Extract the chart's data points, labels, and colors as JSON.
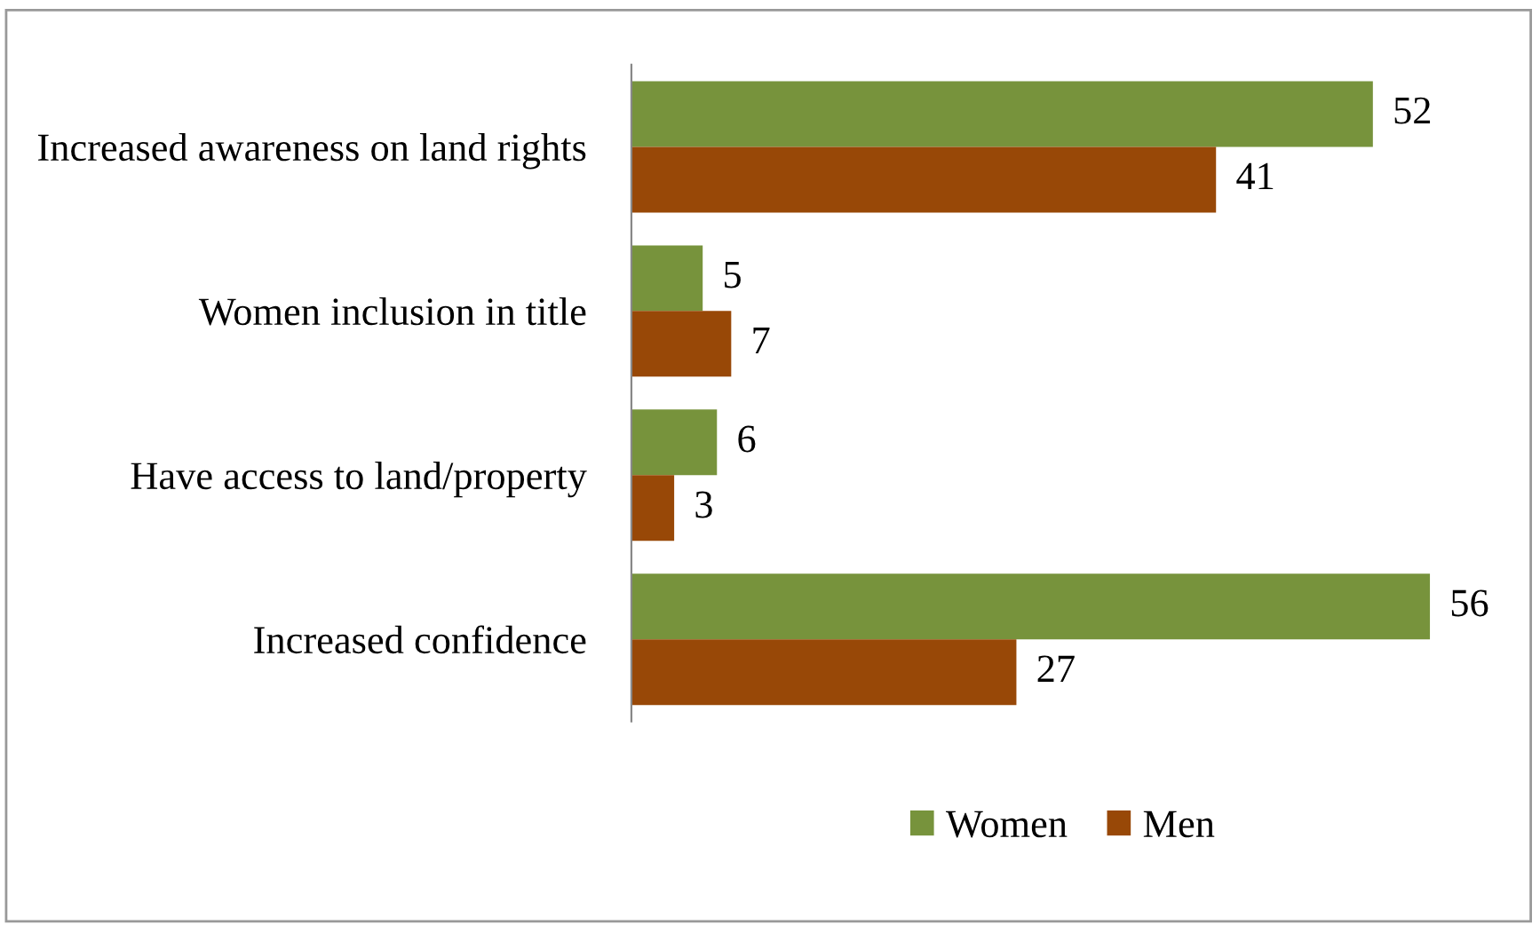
{
  "chart_data": {
    "type": "bar",
    "orientation": "horizontal",
    "categories": [
      "Increased awareness on land rights",
      "Women inclusion in title",
      "Have access to land/property",
      "Increased confidence"
    ],
    "series": [
      {
        "name": "Women",
        "color": "#77933c",
        "values": [
          52,
          5,
          6,
          56
        ]
      },
      {
        "name": "Men",
        "color": "#984807",
        "values": [
          41,
          7,
          3,
          27
        ]
      }
    ],
    "data_labels": true,
    "legend": "bottom",
    "grid": false
  }
}
